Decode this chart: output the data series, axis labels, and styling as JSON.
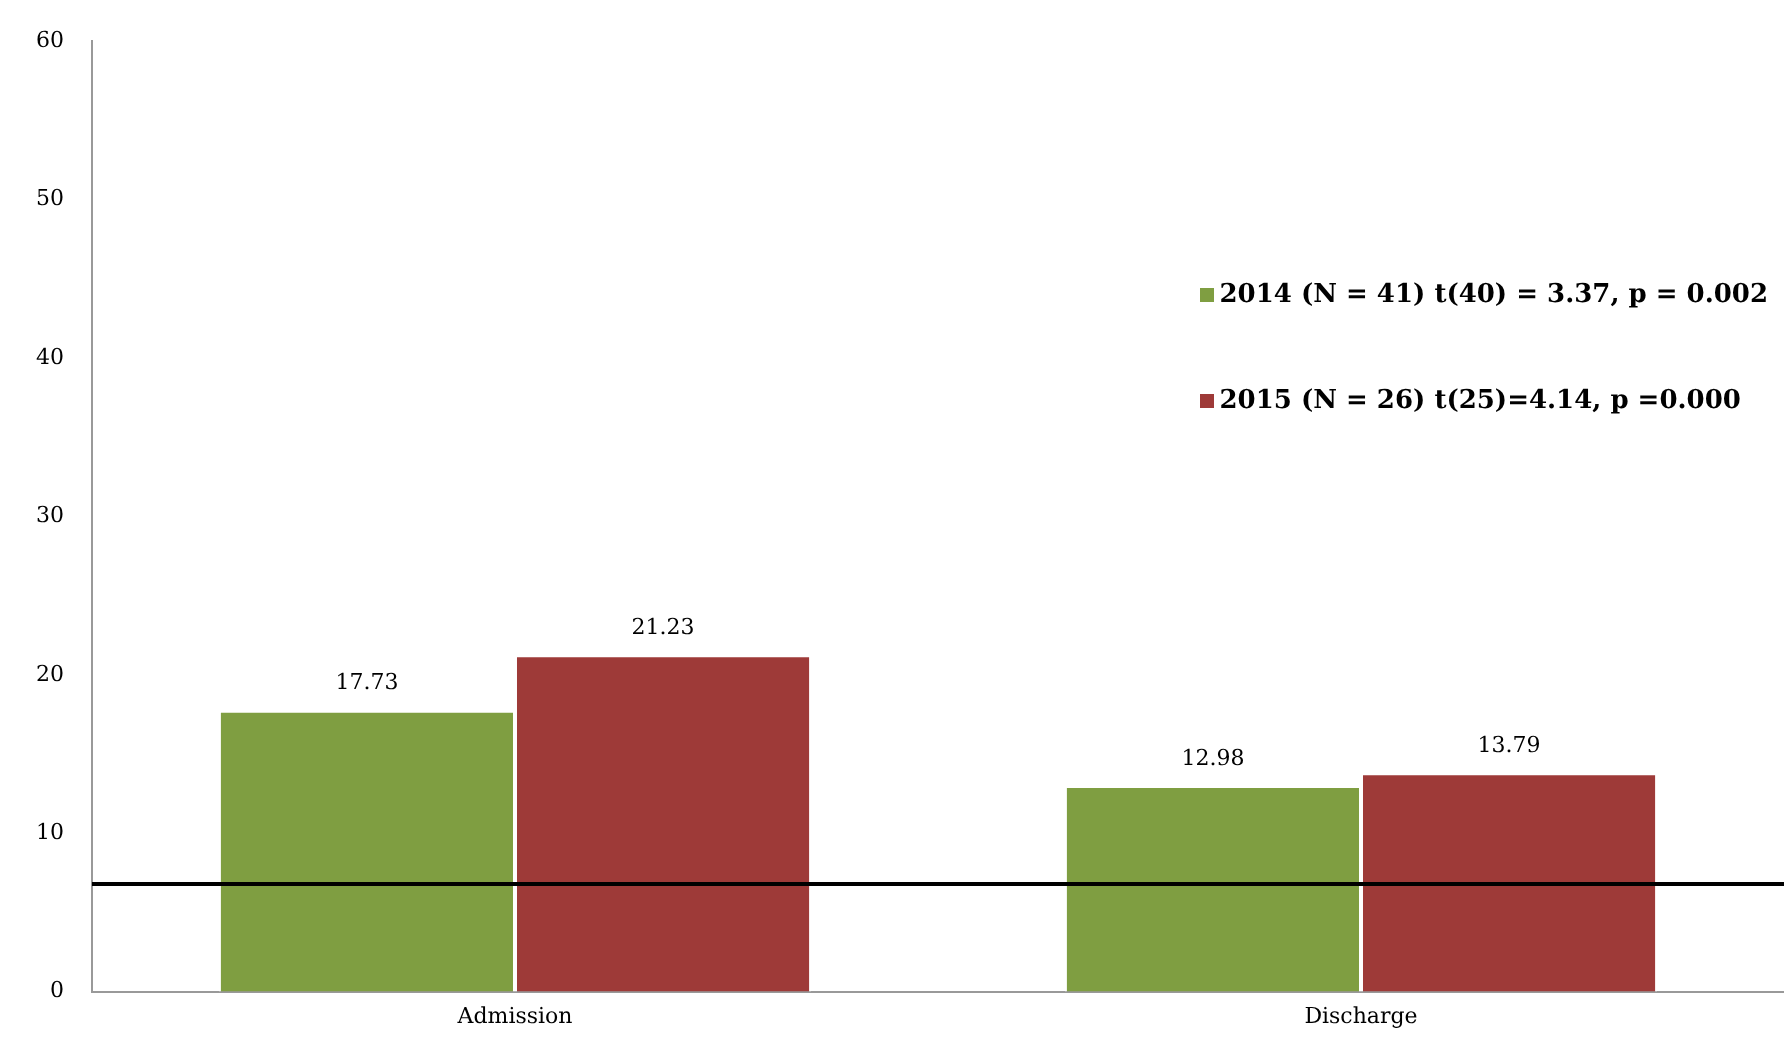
{
  "chart_data": {
    "type": "bar",
    "categories": [
      "Admission",
      "Discharge"
    ],
    "series": [
      {
        "name": "2014 (N = 41) t(40) = 3.37, p = 0.002",
        "color": "#7f9e41",
        "values": [
          17.73,
          12.98
        ]
      },
      {
        "name": "2015 (N = 26) t(25)=4.14, p =0.000",
        "color": "#9e3a38",
        "values": [
          21.23,
          13.79
        ]
      }
    ],
    "ylim": [
      0,
      60
    ],
    "yticks": [
      0,
      10,
      20,
      30,
      40,
      50,
      60
    ],
    "grid": false,
    "legend": "right",
    "data_labels": true,
    "ref_lines": [
      {
        "axis": "y",
        "value": 6.8,
        "color": "#000000"
      }
    ]
  }
}
